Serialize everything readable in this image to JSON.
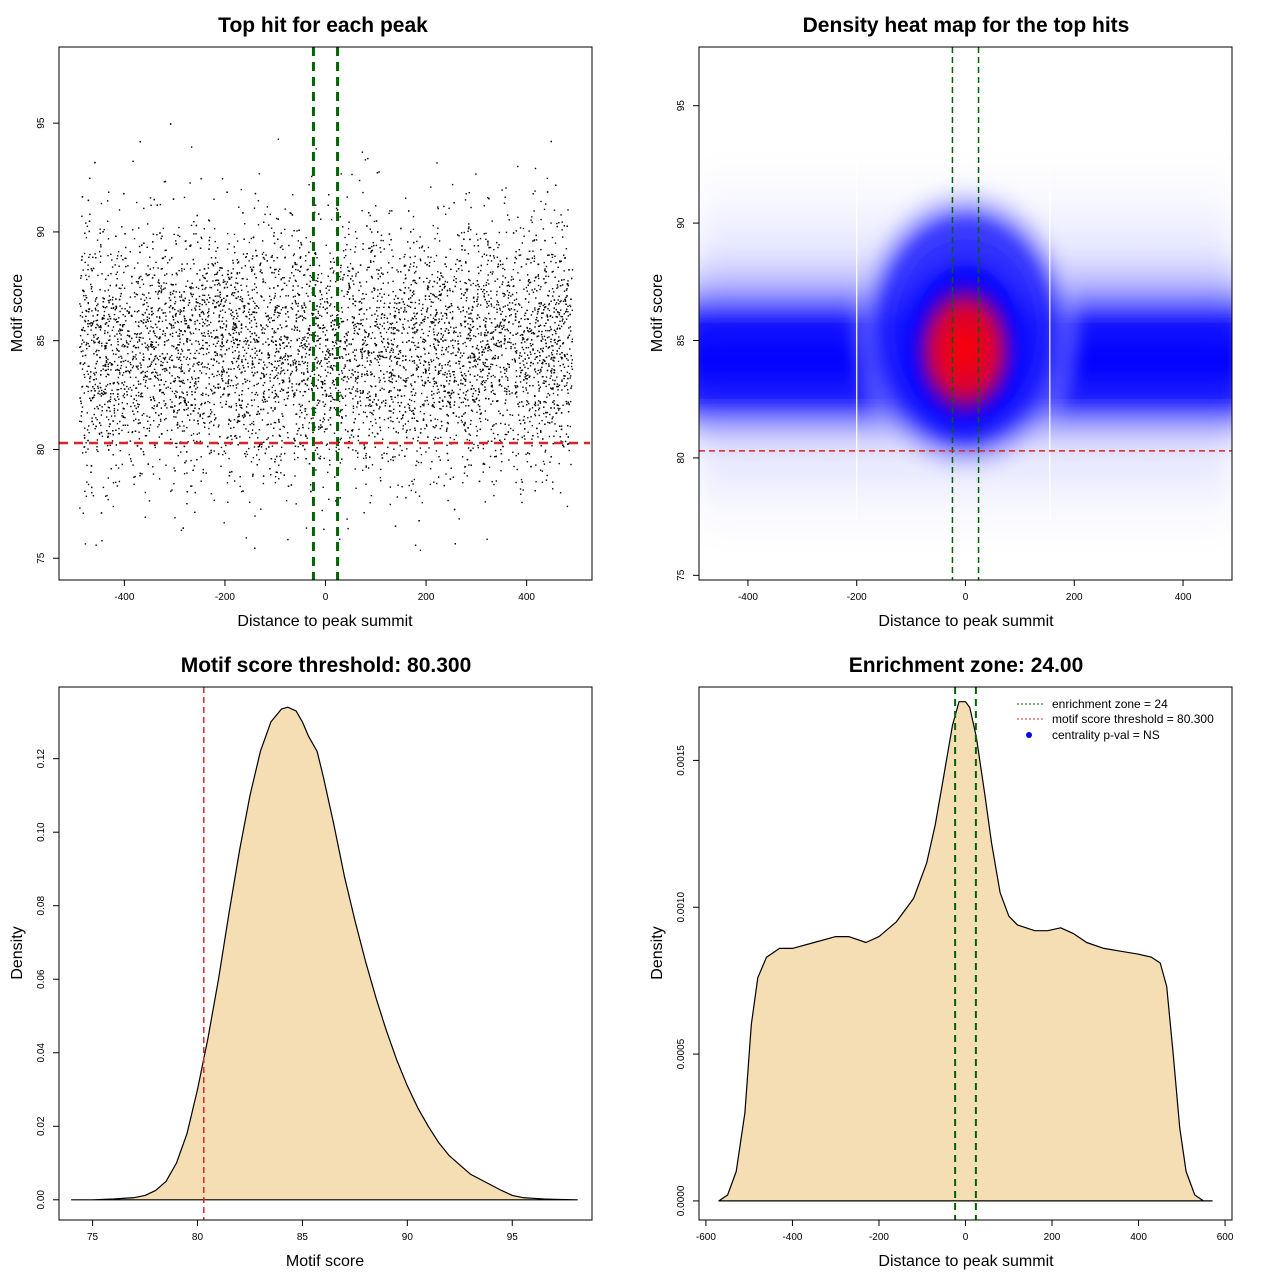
{
  "colors": {
    "points": "#000000",
    "zone_line": "#006400",
    "threshold_line": "#d62728",
    "density_fill": "#f5deb3",
    "heat_low": "#ffffff",
    "heat_mid": "#0000ff",
    "heat_high": "#ff0000",
    "legend_dot": "#0000ff"
  },
  "chart_data": [
    {
      "id": "scatter",
      "type": "scatter",
      "title": "Top hit for each peak",
      "xlabel": "Distance to peak summit",
      "ylabel": "Motif score",
      "xlim": [
        -530,
        530
      ],
      "ylim": [
        74,
        98.5
      ],
      "xticks": [
        -400,
        -200,
        0,
        200,
        400
      ],
      "xtick_labels": [
        "-400",
        "-200",
        "0",
        "200",
        "400"
      ],
      "yticks": [
        75,
        80,
        85,
        90,
        95
      ],
      "ytick_labels": [
        "75",
        "80",
        "85",
        "90",
        "95"
      ],
      "x_range": [
        -490,
        490
      ],
      "score_mean": 84.6,
      "score_sd": 2.9,
      "vlines": [
        -24,
        24
      ],
      "hline": 80.3
    },
    {
      "id": "heatmap",
      "type": "heatmap",
      "title": "Density heat map for the top hits",
      "xlabel": "Distance to peak summit",
      "ylabel": "Motif score",
      "xlim": [
        -490,
        490
      ],
      "ylim": [
        74.8,
        97.5
      ],
      "xticks": [
        -400,
        -200,
        0,
        200,
        400
      ],
      "xtick_labels": [
        "-400",
        "-200",
        "0",
        "200",
        "400"
      ],
      "yticks": [
        75,
        80,
        85,
        90,
        95
      ],
      "ytick_labels": [
        "75",
        "80",
        "85",
        "90",
        "95"
      ],
      "vlines": [
        -24,
        24
      ],
      "hline": 80.3,
      "white_lines": [
        -200,
        155
      ]
    },
    {
      "id": "score_density",
      "type": "area",
      "title": "Motif score threshold: 80.300",
      "xlabel": "Motif score",
      "ylabel": "Density",
      "xlim": [
        73.4,
        98.8
      ],
      "ylim": [
        -0.0055,
        0.1395
      ],
      "xticks": [
        75,
        80,
        85,
        90,
        95
      ],
      "xtick_labels": [
        "75",
        "80",
        "85",
        "90",
        "95"
      ],
      "yticks": [
        0,
        0.02,
        0.04,
        0.06,
        0.08,
        0.1,
        0.12
      ],
      "ytick_labels": [
        "0.00",
        "0.02",
        "0.04",
        "0.06",
        "0.08",
        "0.10",
        "0.12"
      ],
      "x": [
        74.0,
        75.0,
        76.0,
        77.0,
        77.5,
        78.0,
        78.5,
        79.0,
        79.5,
        80.0,
        80.5,
        81.0,
        81.5,
        82.0,
        82.5,
        83.0,
        83.5,
        84.0,
        84.3,
        84.7,
        85.0,
        85.3,
        85.7,
        86.0,
        86.5,
        87.0,
        87.5,
        88.0,
        88.5,
        89.0,
        89.5,
        90.0,
        90.5,
        91.0,
        91.5,
        92.0,
        92.5,
        93.0,
        93.5,
        94.0,
        94.5,
        95.0,
        95.5,
        96.0,
        96.5,
        97.0,
        98.1
      ],
      "y": [
        0.0,
        0.0,
        0.0002,
        0.0006,
        0.0012,
        0.0025,
        0.005,
        0.01,
        0.018,
        0.03,
        0.044,
        0.06,
        0.078,
        0.095,
        0.11,
        0.122,
        0.13,
        0.1335,
        0.134,
        0.133,
        0.13,
        0.126,
        0.122,
        0.115,
        0.102,
        0.088,
        0.076,
        0.065,
        0.055,
        0.046,
        0.038,
        0.031,
        0.025,
        0.02,
        0.0155,
        0.012,
        0.0095,
        0.007,
        0.0055,
        0.004,
        0.0025,
        0.0012,
        0.0006,
        0.0004,
        0.0002,
        0.0001,
        0.0
      ],
      "vline": 80.3
    },
    {
      "id": "distance_density",
      "type": "area",
      "title": "Enrichment zone: 24.00",
      "xlabel": "Distance to peak summit",
      "ylabel": "Density",
      "xlim": [
        -616,
        616
      ],
      "ylim": [
        -6.5e-05,
        0.00175
      ],
      "xticks": [
        -600,
        -400,
        -200,
        0,
        200,
        400,
        600
      ],
      "xtick_labels": [
        "-600",
        "-400",
        "-200",
        "0",
        "200",
        "400",
        "600"
      ],
      "yticks": [
        0,
        0.0005,
        0.001,
        0.0015
      ],
      "ytick_labels": [
        "0.0000",
        "0.0005",
        "0.0010",
        "0.0015"
      ],
      "x": [
        -570,
        -550,
        -530,
        -510,
        -495,
        -480,
        -460,
        -430,
        -400,
        -350,
        -300,
        -270,
        -230,
        -200,
        -160,
        -120,
        -90,
        -70,
        -50,
        -30,
        -15,
        0,
        10,
        25,
        45,
        60,
        80,
        100,
        120,
        140,
        160,
        190,
        220,
        250,
        280,
        320,
        360,
        400,
        430,
        450,
        465,
        480,
        495,
        510,
        530,
        550,
        570
      ],
      "y": [
        0.0,
        2e-05,
        0.0001,
        0.0003,
        0.0006,
        0.00076,
        0.00083,
        0.00086,
        0.00086,
        0.00088,
        0.0009,
        0.0009,
        0.00088,
        0.0009,
        0.00095,
        0.00103,
        0.00115,
        0.00128,
        0.00145,
        0.00162,
        0.0017,
        0.0017,
        0.00168,
        0.00158,
        0.00138,
        0.00122,
        0.00105,
        0.00097,
        0.00094,
        0.00093,
        0.00092,
        0.00092,
        0.00093,
        0.00091,
        0.00088,
        0.00086,
        0.00085,
        0.00084,
        0.00083,
        0.00081,
        0.00073,
        0.0005,
        0.00025,
        0.0001,
        2e-05,
        0.0,
        0.0
      ],
      "vlines": [
        -24,
        24
      ],
      "legend": [
        {
          "label": "enrichment zone = 24",
          "style": "dotted",
          "color": "#006400"
        },
        {
          "label": "motif score threshold = 80.300",
          "style": "dotted",
          "color": "#d62728"
        },
        {
          "label": "centrality p-val = NS",
          "style": "dot",
          "color": "#0000ff"
        }
      ],
      "legend_position": "top-right"
    }
  ]
}
